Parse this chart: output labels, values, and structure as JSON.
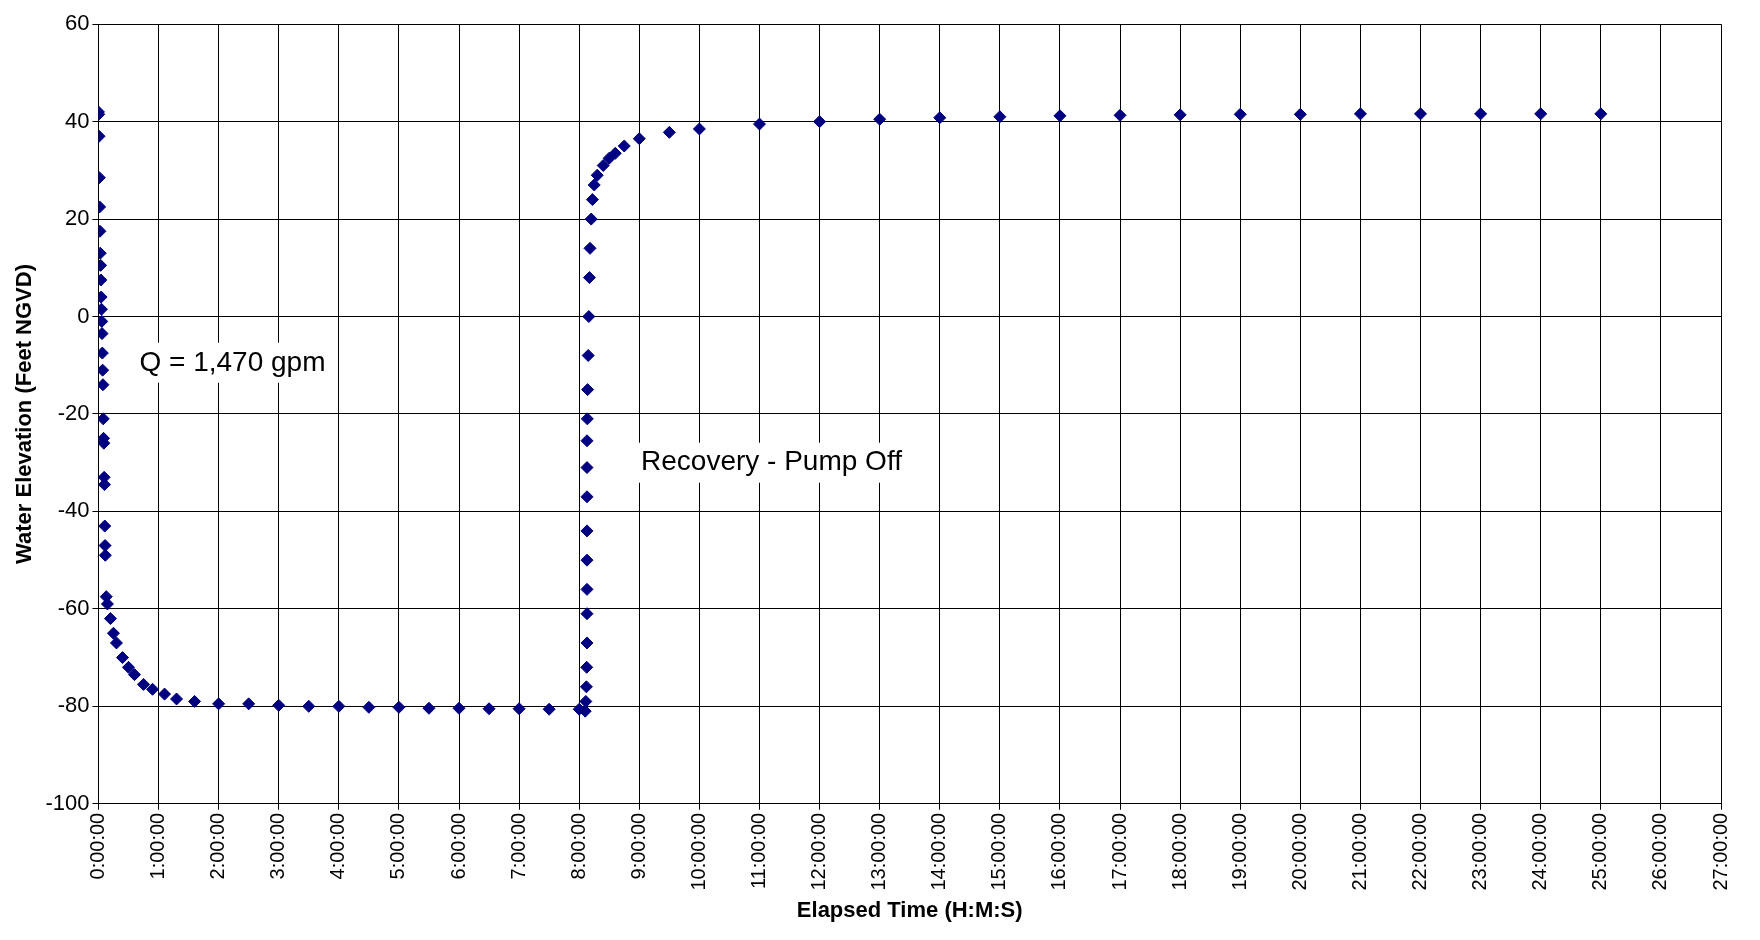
{
  "chart_data": {
    "type": "scatter",
    "xlabel": "Elapsed Time (H:M:S)",
    "ylabel": "Water Elevation (Feet NGVD)",
    "annotations": [
      "Q = 1,470 gpm",
      "Recovery - Pump Off"
    ],
    "marker": "diamond",
    "grid": true,
    "legend": false,
    "xlim": [
      0,
      27
    ],
    "ylim": [
      -100,
      60
    ],
    "xticks": [
      {
        "value": 0,
        "label": "0:00:00"
      },
      {
        "value": 1,
        "label": "1:00:00"
      },
      {
        "value": 2,
        "label": "2:00:00"
      },
      {
        "value": 3,
        "label": "3:00:00"
      },
      {
        "value": 4,
        "label": "4:00:00"
      },
      {
        "value": 5,
        "label": "5:00:00"
      },
      {
        "value": 6,
        "label": "6:00:00"
      },
      {
        "value": 7,
        "label": "7:00:00"
      },
      {
        "value": 8,
        "label": "8:00:00"
      },
      {
        "value": 9,
        "label": "9:00:00"
      },
      {
        "value": 10,
        "label": "10:00:00"
      },
      {
        "value": 11,
        "label": "11:00:00"
      },
      {
        "value": 12,
        "label": "12:00:00"
      },
      {
        "value": 13,
        "label": "13:00:00"
      },
      {
        "value": 14,
        "label": "14:00:00"
      },
      {
        "value": 15,
        "label": "15:00:00"
      },
      {
        "value": 16,
        "label": "16:00:00"
      },
      {
        "value": 17,
        "label": "17:00:00"
      },
      {
        "value": 18,
        "label": "18:00:00"
      },
      {
        "value": 19,
        "label": "19:00:00"
      },
      {
        "value": 20,
        "label": "20:00:00"
      },
      {
        "value": 21,
        "label": "21:00:00"
      },
      {
        "value": 22,
        "label": "22:00:00"
      },
      {
        "value": 23,
        "label": "23:00:00"
      },
      {
        "value": 24,
        "label": "24:00:00"
      },
      {
        "value": 25,
        "label": "25:00:00"
      },
      {
        "value": 26,
        "label": "26:00:00"
      },
      {
        "value": 27,
        "label": "27:00:00"
      }
    ],
    "yticks": [
      -100,
      -80,
      -60,
      -40,
      -20,
      0,
      20,
      40,
      60
    ],
    "series": [
      {
        "color": "#000080",
        "x": [
          0,
          0.005,
          0.01,
          0.015,
          0.02,
          0.025,
          0.03,
          0.035,
          0.04,
          0.045,
          0.05,
          0.055,
          0.06,
          0.065,
          0.07,
          0.075,
          0.08,
          0.085,
          0.09,
          0.095,
          0.1,
          0.105,
          0.11,
          0.115,
          0.13,
          0.15,
          0.2,
          0.25,
          0.3,
          0.4,
          0.5,
          0.6,
          0.75,
          0.9,
          1.1,
          1.3,
          1.6,
          2,
          2.5,
          3,
          3.5,
          4,
          4.5,
          5,
          5.5,
          6,
          6.5,
          7,
          7.5,
          8,
          8.1,
          8.11,
          8.12,
          8.125,
          8.13,
          8.13,
          8.13,
          8.13,
          8.13,
          8.13,
          8.13,
          8.13,
          8.135,
          8.14,
          8.15,
          8.16,
          8.17,
          8.18,
          8.2,
          8.22,
          8.25,
          8.3,
          8.4,
          8.5,
          8.6,
          8.75,
          9,
          9.5,
          10,
          11,
          12,
          13,
          14,
          15,
          16,
          17,
          18,
          19,
          20,
          21,
          22,
          23,
          24,
          25
        ],
        "values": [
          42,
          41.5,
          37,
          28.5,
          22.5,
          17.5,
          13,
          10.5,
          7.5,
          4,
          1.5,
          -1,
          -3.5,
          -7.5,
          -11,
          -14,
          -21,
          -25,
          -26,
          -33,
          -34.5,
          -43,
          -47,
          -49,
          -57.5,
          -59,
          -62,
          -65,
          -67,
          -70,
          -72,
          -73.5,
          -75.5,
          -76.5,
          -77.5,
          -78.5,
          -79,
          -79.5,
          -79.5,
          -79.8,
          -80,
          -80,
          -80.2,
          -80.2,
          -80.4,
          -80.4,
          -80.5,
          -80.5,
          -80.6,
          -80.6,
          -81,
          -79,
          -76,
          -72,
          -67,
          -61,
          -56,
          -50,
          -44,
          -37,
          -31,
          -25.5,
          -21,
          -15,
          -8,
          0,
          8,
          14,
          20,
          24,
          27,
          29,
          31,
          32.5,
          33.5,
          35,
          36.5,
          37.8,
          38.5,
          39.5,
          40,
          40.5,
          40.8,
          41,
          41.2,
          41.3,
          41.4,
          41.5,
          41.5,
          41.6,
          41.6,
          41.6,
          41.6,
          41.6
        ]
      }
    ]
  }
}
